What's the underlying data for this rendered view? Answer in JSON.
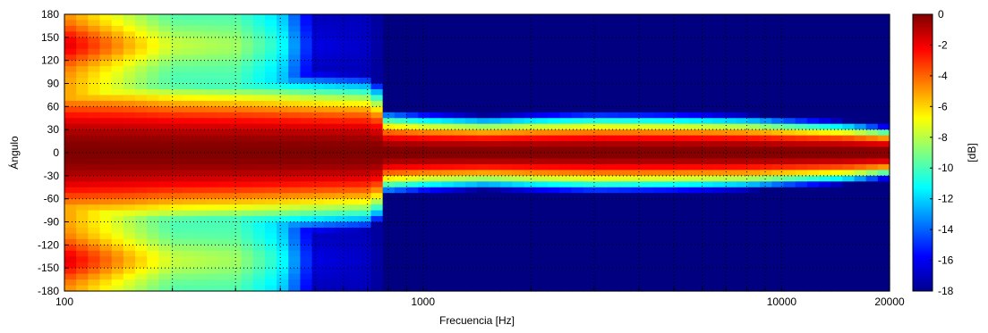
{
  "chart_data": {
    "type": "heatmap",
    "xlabel": "Frecuencia [Hz]",
    "ylabel": "Ángulo",
    "colorbar_label": "[dB]",
    "x_scale": "log",
    "xlim": [
      100,
      20000
    ],
    "ylim": [
      -180,
      180
    ],
    "clim": [
      -18,
      0
    ],
    "grid": true,
    "grid_style": "dotted",
    "x_ticks": [
      {
        "value": 100,
        "label": "100"
      },
      {
        "value": 1000,
        "label": "1000"
      },
      {
        "value": 10000,
        "label": "10000"
      },
      {
        "value": 20000,
        "label": "20000"
      }
    ],
    "x_minor_ticks": [
      200,
      300,
      400,
      500,
      600,
      700,
      800,
      900,
      2000,
      3000,
      4000,
      5000,
      6000,
      7000,
      8000,
      9000
    ],
    "y_ticks": [
      {
        "value": 180,
        "label": "180"
      },
      {
        "value": 150,
        "label": "150"
      },
      {
        "value": 120,
        "label": "120"
      },
      {
        "value": 90,
        "label": "90"
      },
      {
        "value": 60,
        "label": "60"
      },
      {
        "value": 30,
        "label": "30"
      },
      {
        "value": 0,
        "label": "0"
      },
      {
        "value": -30,
        "label": "-30"
      },
      {
        "value": -60,
        "label": "-60"
      },
      {
        "value": -90,
        "label": "-90"
      },
      {
        "value": -120,
        "label": "-120"
      },
      {
        "value": -150,
        "label": "-150"
      },
      {
        "value": -180,
        "label": "-180"
      }
    ],
    "colorbar_ticks": [
      {
        "value": 0,
        "label": "0"
      },
      {
        "value": -2,
        "label": "-2"
      },
      {
        "value": -4,
        "label": "-4"
      },
      {
        "value": -6,
        "label": "-6"
      },
      {
        "value": -8,
        "label": "-8"
      },
      {
        "value": -10,
        "label": "-10"
      },
      {
        "value": -12,
        "label": "-12"
      },
      {
        "value": -14,
        "label": "-14"
      },
      {
        "value": -16,
        "label": "-16"
      },
      {
        "value": -18,
        "label": "-18"
      }
    ],
    "colormap": "jet",
    "beam_profile": {
      "description_note": "",
      "freq_hz": [
        100,
        150,
        200,
        300,
        400,
        500,
        700,
        800,
        1000,
        1500,
        2000,
        3000,
        5000,
        8000,
        10000,
        15000,
        20000
      ],
      "beamwidth_6db_deg": [
        75,
        72,
        68,
        66,
        64,
        62,
        60,
        48,
        45,
        42,
        44,
        46,
        45,
        43,
        40,
        36,
        30
      ],
      "level_at_180_db": [
        -5,
        -8,
        -10,
        -10,
        -12,
        -17,
        -17,
        -18,
        -18,
        -18,
        -18,
        -18,
        -18,
        -18,
        -18,
        -18,
        -18
      ]
    }
  }
}
